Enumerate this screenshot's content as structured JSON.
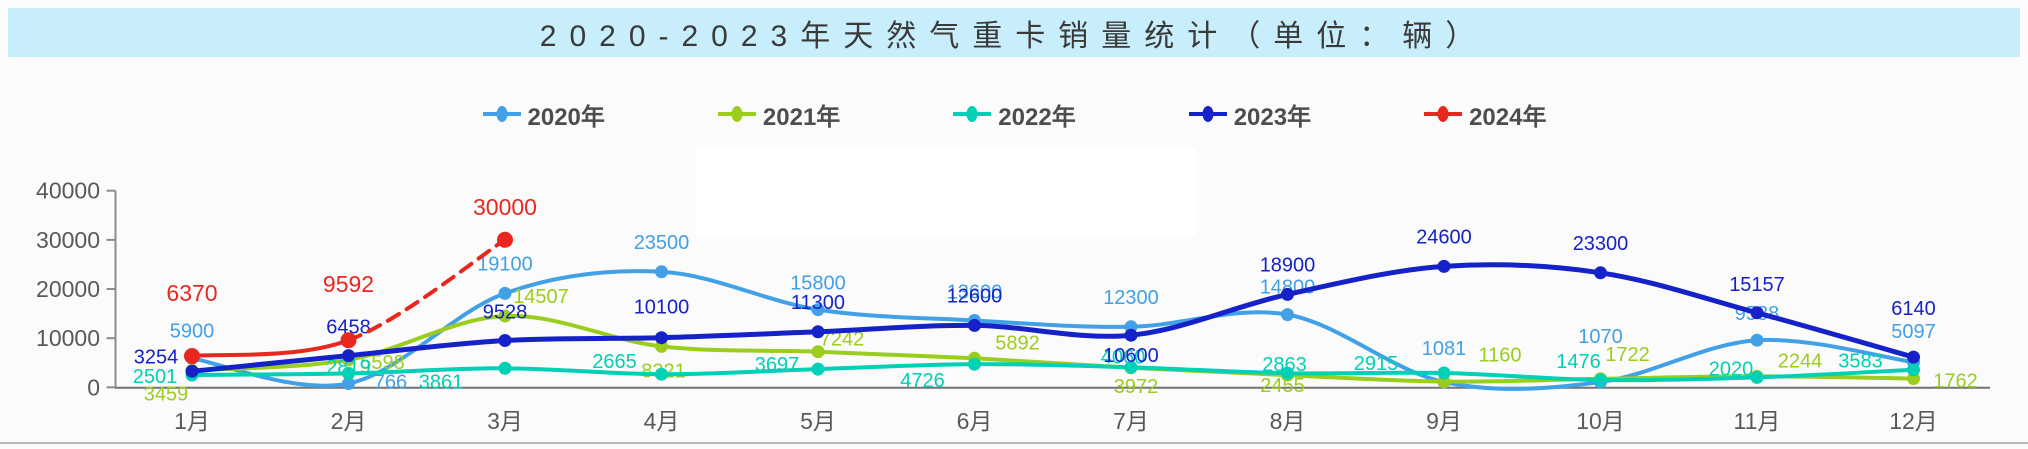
{
  "header": {
    "title": "2020-2023年天然气重卡销量统计（单位：辆）",
    "background": "#c8eefb"
  },
  "chart_data": {
    "type": "line",
    "title": "2020-2023年天然气重卡销量统计（单位：辆）",
    "unit": "辆",
    "categories": [
      "1月",
      "2月",
      "3月",
      "4月",
      "5月",
      "6月",
      "7月",
      "8月",
      "9月",
      "10月",
      "11月",
      "12月"
    ],
    "series": [
      {
        "name": "2020年",
        "color": "#41a0e6",
        "values": [
          5900,
          766,
          19100,
          23500,
          15800,
          13600,
          12300,
          14800,
          1081,
          1070,
          9588,
          5097
        ],
        "label_offsets": [
          [
            0,
            -27
          ],
          [
            42,
            -1
          ],
          [
            0,
            -29
          ],
          [
            0,
            -29
          ],
          [
            0,
            -26
          ],
          [
            0,
            -28
          ],
          [
            0,
            -29
          ],
          [
            0,
            -27
          ],
          [
            0,
            -33
          ],
          [
            0,
            -45
          ],
          [
            0,
            -26
          ],
          [
            0,
            -30
          ]
        ]
      },
      {
        "name": "2021年",
        "color": "#9acd1e",
        "values": [
          3459,
          5598,
          14507,
          8321,
          7242,
          5892,
          3972,
          2455,
          1160,
          1722,
          2244,
          1762
        ],
        "label_offsets": [
          [
            -26,
            24
          ],
          [
            34,
            3
          ],
          [
            36,
            -19
          ],
          [
            2,
            25
          ],
          [
            24,
            -12
          ],
          [
            43,
            -15
          ],
          [
            5,
            19
          ],
          [
            -5,
            11
          ],
          [
            56,
            -26
          ],
          [
            27,
            -24
          ],
          [
            43,
            -15
          ],
          [
            42,
            3
          ]
        ]
      },
      {
        "name": "2022年",
        "color": "#00d0b5",
        "values": [
          2501,
          2819,
          3861,
          2665,
          3697,
          4726,
          4060,
          2863,
          2915,
          1476,
          2020,
          3583
        ],
        "label_offsets": [
          [
            -37,
            2
          ],
          [
            0,
            -6
          ],
          [
            -64,
            14
          ],
          [
            -47,
            -12
          ],
          [
            -41,
            -4
          ],
          [
            -52,
            17
          ],
          [
            -8,
            -10
          ],
          [
            -3,
            -8
          ],
          [
            -68,
            -9
          ],
          [
            -22,
            -18
          ],
          [
            -26,
            -8
          ],
          [
            -53,
            -8
          ]
        ]
      },
      {
        "name": "2023年",
        "color": "#1522c8",
        "values": [
          3254,
          6458,
          9528,
          10100,
          11300,
          12600,
          10600,
          18900,
          24600,
          23300,
          15157,
          6140
        ],
        "label_offsets": [
          [
            -36,
            -14
          ],
          [
            0,
            -28
          ],
          [
            0,
            -28
          ],
          [
            0,
            -30
          ],
          [
            0,
            -29
          ],
          [
            0,
            -29
          ],
          [
            0,
            21
          ],
          [
            0,
            -29
          ],
          [
            0,
            -29
          ],
          [
            0,
            -29
          ],
          [
            0,
            -28
          ],
          [
            0,
            -48
          ]
        ]
      },
      {
        "name": "2024年",
        "color": "#e8271f",
        "values": [
          6370,
          9592,
          30000
        ],
        "dashed_from_index": 1,
        "label_offsets": [
          [
            0,
            -63
          ],
          [
            0,
            -56
          ],
          [
            0,
            -33
          ]
        ]
      }
    ],
    "y_axis": {
      "min": 0,
      "max": 40000,
      "step": 10000,
      "tick_labels": [
        "0",
        "10000",
        "20000",
        "30000",
        "40000"
      ]
    },
    "x_axis_label_suffix": "月",
    "legend_position": "top",
    "grid": false,
    "smooth": true
  }
}
